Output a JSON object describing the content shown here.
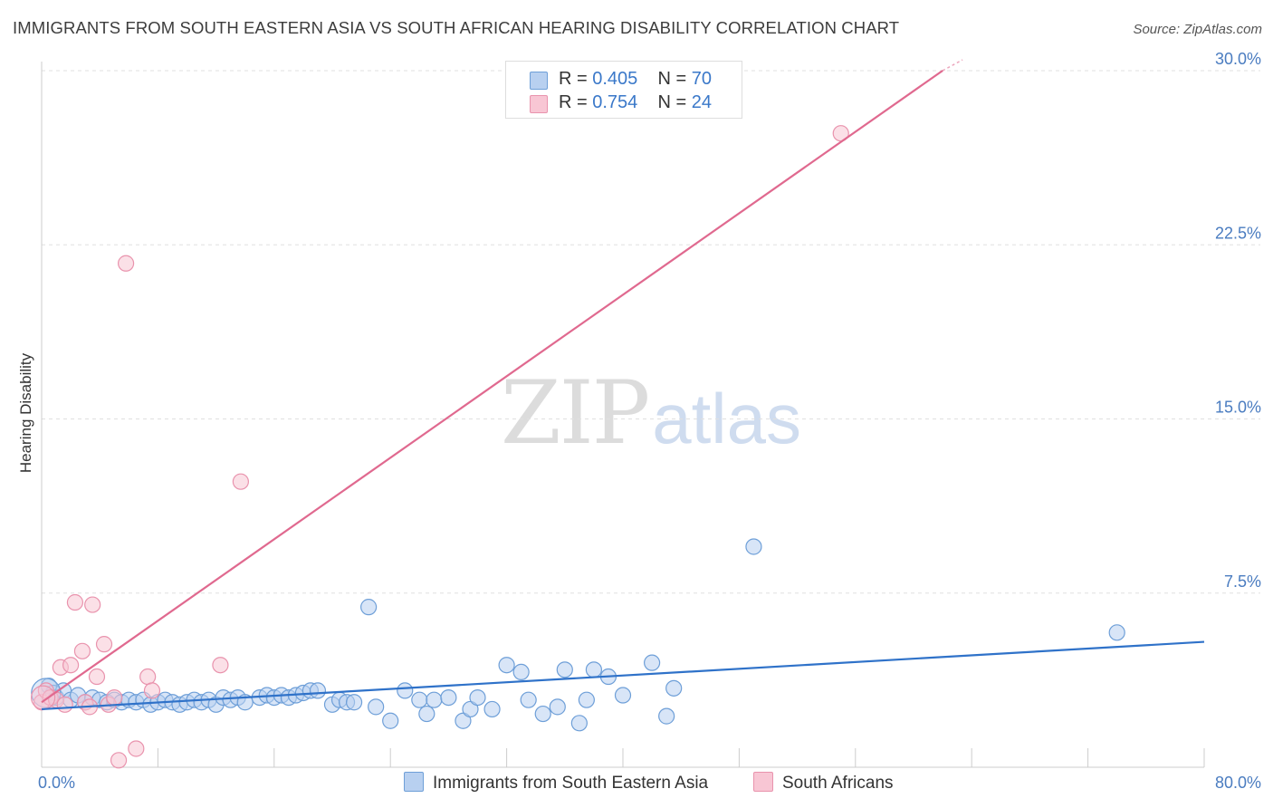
{
  "title": "IMMIGRANTS FROM SOUTH EASTERN ASIA VS SOUTH AFRICAN HEARING DISABILITY CORRELATION CHART",
  "source": "Source: ZipAtlas.com",
  "watermark": {
    "zip": "ZIP",
    "atlas": "atlas"
  },
  "legend": {
    "r_label": "R =",
    "n_label": "N =",
    "items": [
      {
        "r": "0.405",
        "n": "70"
      },
      {
        "r": "0.754",
        "n": "24"
      }
    ]
  },
  "colors": {
    "blue_fill": "#b8d0f0",
    "blue_stroke": "#6e9fd8",
    "blue_line": "#2f72c9",
    "pink_fill": "#f8c6d4",
    "pink_stroke": "#e993ad",
    "pink_line": "#e0698f"
  },
  "chart_data": {
    "type": "scatter",
    "title": "IMMIGRANTS FROM SOUTH EASTERN ASIA VS SOUTH AFRICAN HEARING DISABILITY CORRELATION CHART",
    "xlabel": "",
    "ylabel": "Hearing Disability",
    "xlim": [
      0,
      80
    ],
    "ylim": [
      0,
      30
    ],
    "x_tick_labels": [
      "0.0%",
      "80.0%"
    ],
    "y_ticks": [
      7.5,
      15.0,
      22.5,
      30.0
    ],
    "y_tick_labels": [
      "7.5%",
      "15.0%",
      "22.5%",
      "30.0%"
    ],
    "legend_position": "top-center",
    "series": [
      {
        "name": "Immigrants from South Eastern Asia",
        "color": "#6e9fd8",
        "trend": [
          [
            0,
            2.5
          ],
          [
            80,
            5.4
          ]
        ],
        "points": [
          [
            0.5,
            3.5
          ],
          [
            0.8,
            3.2
          ],
          [
            1.0,
            3.0
          ],
          [
            1.5,
            3.3
          ],
          [
            2.0,
            2.9
          ],
          [
            2.5,
            3.1
          ],
          [
            3.0,
            2.8
          ],
          [
            3.5,
            3.0
          ],
          [
            4.0,
            2.9
          ],
          [
            4.5,
            2.8
          ],
          [
            5.0,
            2.9
          ],
          [
            5.5,
            2.8
          ],
          [
            6.0,
            2.9
          ],
          [
            6.5,
            2.8
          ],
          [
            7.0,
            2.9
          ],
          [
            7.5,
            2.7
          ],
          [
            8.0,
            2.8
          ],
          [
            8.5,
            2.9
          ],
          [
            9.0,
            2.8
          ],
          [
            9.5,
            2.7
          ],
          [
            10.0,
            2.8
          ],
          [
            10.5,
            2.9
          ],
          [
            11.0,
            2.8
          ],
          [
            11.5,
            2.9
          ],
          [
            12.0,
            2.7
          ],
          [
            12.5,
            3.0
          ],
          [
            13.0,
            2.9
          ],
          [
            13.5,
            3.0
          ],
          [
            14.0,
            2.8
          ],
          [
            15.0,
            3.0
          ],
          [
            15.5,
            3.1
          ],
          [
            16.0,
            3.0
          ],
          [
            16.5,
            3.1
          ],
          [
            17.0,
            3.0
          ],
          [
            17.5,
            3.1
          ],
          [
            18.0,
            3.2
          ],
          [
            18.5,
            3.3
          ],
          [
            19.0,
            3.3
          ],
          [
            20.0,
            2.7
          ],
          [
            20.5,
            2.9
          ],
          [
            21.0,
            2.8
          ],
          [
            21.5,
            2.8
          ],
          [
            22.5,
            6.9
          ],
          [
            23.0,
            2.6
          ],
          [
            24.0,
            2.0
          ],
          [
            25.0,
            3.3
          ],
          [
            26.0,
            2.9
          ],
          [
            26.5,
            2.3
          ],
          [
            27.0,
            2.9
          ],
          [
            28.0,
            3.0
          ],
          [
            29.0,
            2.0
          ],
          [
            29.5,
            2.5
          ],
          [
            30.0,
            3.0
          ],
          [
            31.0,
            2.5
          ],
          [
            32.0,
            4.4
          ],
          [
            33.0,
            4.1
          ],
          [
            33.5,
            2.9
          ],
          [
            34.5,
            2.3
          ],
          [
            35.5,
            2.6
          ],
          [
            36.0,
            4.2
          ],
          [
            37.0,
            1.9
          ],
          [
            37.5,
            2.9
          ],
          [
            38.0,
            4.2
          ],
          [
            39.0,
            3.9
          ],
          [
            40.0,
            3.1
          ],
          [
            42.0,
            4.5
          ],
          [
            43.0,
            2.2
          ],
          [
            43.5,
            3.4
          ],
          [
            49.0,
            9.5
          ],
          [
            74.0,
            5.8
          ]
        ]
      },
      {
        "name": "South Africans",
        "color": "#e993ad",
        "trend": [
          [
            0,
            2.8
          ],
          [
            62,
            30.0
          ]
        ],
        "points": [
          [
            0.0,
            2.8
          ],
          [
            0.3,
            3.3
          ],
          [
            0.6,
            3.0
          ],
          [
            1.0,
            2.9
          ],
          [
            1.3,
            4.3
          ],
          [
            1.6,
            2.7
          ],
          [
            2.0,
            4.4
          ],
          [
            2.3,
            7.1
          ],
          [
            2.8,
            5.0
          ],
          [
            3.0,
            2.8
          ],
          [
            3.3,
            2.6
          ],
          [
            3.5,
            7.0
          ],
          [
            3.8,
            3.9
          ],
          [
            4.3,
            5.3
          ],
          [
            4.6,
            2.7
          ],
          [
            5.0,
            3.0
          ],
          [
            5.3,
            0.3
          ],
          [
            5.8,
            21.7
          ],
          [
            6.5,
            0.8
          ],
          [
            7.3,
            3.9
          ],
          [
            7.6,
            3.3
          ],
          [
            12.3,
            4.4
          ],
          [
            13.7,
            12.3
          ],
          [
            55.0,
            27.3
          ]
        ]
      }
    ]
  }
}
